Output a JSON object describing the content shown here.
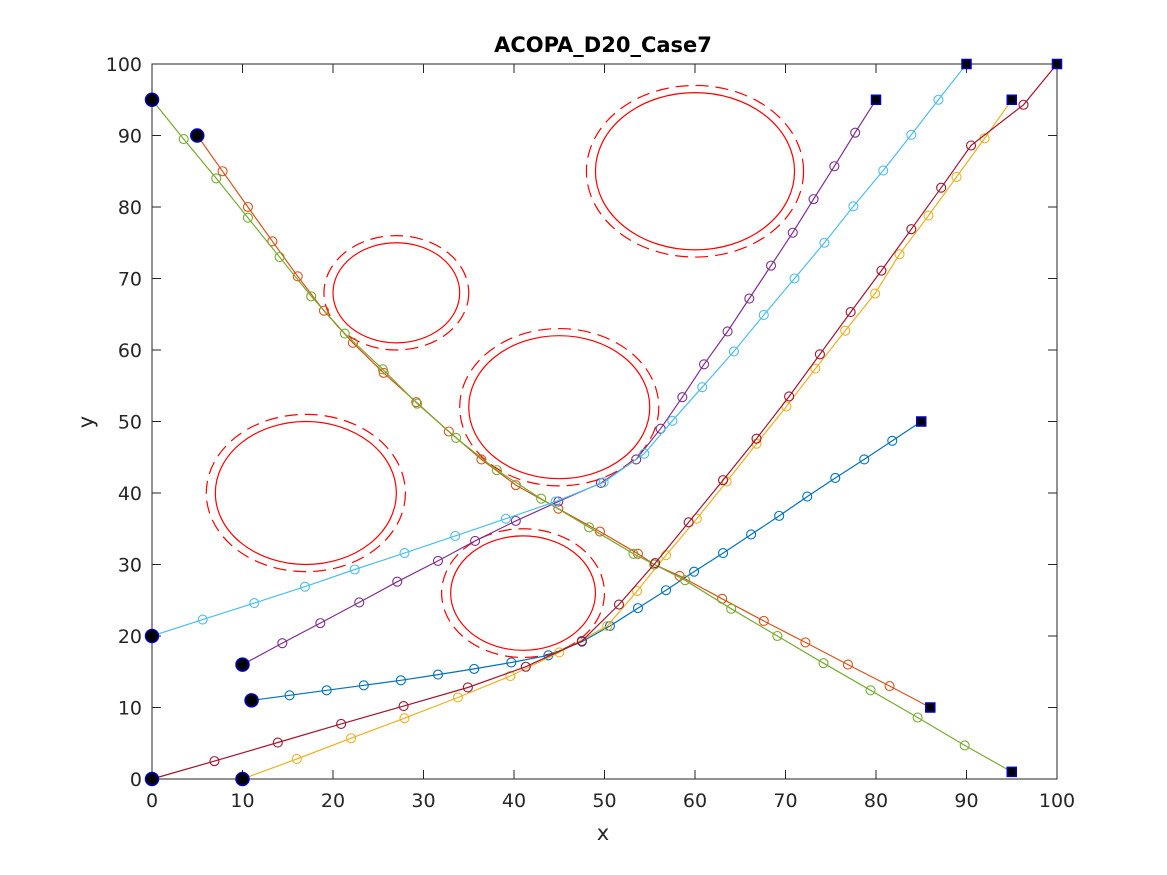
{
  "chart_data": {
    "type": "line",
    "title": "ACOPA_D20_Case7",
    "xlabel": "x",
    "ylabel": "y",
    "xlim": [
      0,
      100
    ],
    "ylim": [
      0,
      100
    ],
    "xticks": [
      "0",
      "10",
      "20",
      "30",
      "40",
      "50",
      "60",
      "70",
      "80",
      "90",
      "100"
    ],
    "yticks": [
      "0",
      "10",
      "20",
      "30",
      "40",
      "50",
      "60",
      "70",
      "80",
      "90",
      "100"
    ],
    "grid": false,
    "obstacles": [
      {
        "cx": 17,
        "cy": 40,
        "rx": 10,
        "ry": 10,
        "margin": 1
      },
      {
        "cx": 27,
        "cy": 68,
        "rx": 7,
        "ry": 7,
        "margin": 1
      },
      {
        "cx": 45,
        "cy": 52,
        "rx": 10,
        "ry": 10,
        "margin": 1
      },
      {
        "cx": 41,
        "cy": 26,
        "rx": 8,
        "ry": 8,
        "margin": 1
      },
      {
        "cx": 60,
        "cy": 85,
        "rx": 11,
        "ry": 11,
        "margin": 1
      }
    ],
    "series": [
      {
        "color": "#0072BD",
        "start": [
          11,
          11
        ],
        "goal": [
          85,
          50
        ],
        "points": [
          [
            11,
            11
          ],
          [
            15.2,
            11.7
          ],
          [
            19.3,
            12.4
          ],
          [
            23.4,
            13.1
          ],
          [
            27.5,
            13.8
          ],
          [
            31.6,
            14.6
          ],
          [
            35.6,
            15.4
          ],
          [
            39.7,
            16.3
          ],
          [
            43.8,
            17.3
          ],
          [
            47.5,
            19.2
          ],
          [
            50.6,
            21.4
          ],
          [
            53.7,
            23.9
          ],
          [
            56.8,
            26.4
          ],
          [
            59.9,
            29
          ],
          [
            63.1,
            31.6
          ],
          [
            66.2,
            34.2
          ],
          [
            69.3,
            36.8
          ],
          [
            72.4,
            39.5
          ],
          [
            75.5,
            42.1
          ],
          [
            78.7,
            44.7
          ],
          [
            81.8,
            47.3
          ],
          [
            85,
            50
          ]
        ]
      },
      {
        "color": "#D95319",
        "start": [
          5,
          90
        ],
        "goal": [
          86,
          10
        ],
        "points": [
          [
            5,
            90
          ],
          [
            7.8,
            85
          ],
          [
            10.6,
            80
          ],
          [
            13.3,
            75.2
          ],
          [
            16.1,
            70.3
          ],
          [
            19,
            65.5
          ],
          [
            22.2,
            61
          ],
          [
            25.6,
            56.8
          ],
          [
            29.2,
            52.7
          ],
          [
            32.8,
            48.6
          ],
          [
            36.4,
            44.7
          ],
          [
            40.2,
            41.1
          ],
          [
            44.9,
            37.8
          ],
          [
            49.5,
            34.6
          ],
          [
            53.7,
            31.5
          ],
          [
            55.5,
            30
          ],
          [
            58.3,
            28.4
          ],
          [
            63,
            25.2
          ],
          [
            67.6,
            22.1
          ],
          [
            72.2,
            19.1
          ],
          [
            76.9,
            16
          ],
          [
            81.5,
            13
          ],
          [
            86,
            10
          ]
        ]
      },
      {
        "color": "#EDB120",
        "start": [
          10,
          0
        ],
        "goal": [
          95,
          95
        ],
        "points": [
          [
            10,
            0
          ],
          [
            16,
            2.8
          ],
          [
            22,
            5.7
          ],
          [
            27.9,
            8.5
          ],
          [
            33.8,
            11.4
          ],
          [
            39.6,
            14.4
          ],
          [
            45,
            17.7
          ],
          [
            50.3,
            21.4
          ],
          [
            53.6,
            26.3
          ],
          [
            56.8,
            31.3
          ],
          [
            60.2,
            36.4
          ],
          [
            63.5,
            41.6
          ],
          [
            66.8,
            46.9
          ],
          [
            70.1,
            52.1
          ],
          [
            73.3,
            57.4
          ],
          [
            76.6,
            62.7
          ],
          [
            79.9,
            67.9
          ],
          [
            82.6,
            73.4
          ],
          [
            85.8,
            78.8
          ],
          [
            88.9,
            84.2
          ],
          [
            92,
            89.6
          ],
          [
            95,
            95
          ]
        ]
      },
      {
        "color": "#7E2F8E",
        "start": [
          10,
          16
        ],
        "goal": [
          80,
          95
        ],
        "points": [
          [
            10,
            16
          ],
          [
            14.4,
            19
          ],
          [
            18.6,
            21.8
          ],
          [
            22.9,
            24.7
          ],
          [
            27.1,
            27.6
          ],
          [
            31.6,
            30.5
          ],
          [
            35.7,
            33.3
          ],
          [
            40.2,
            36.1
          ],
          [
            44.9,
            38.8
          ],
          [
            49.6,
            41.4
          ],
          [
            53.5,
            44.7
          ],
          [
            56.2,
            49
          ],
          [
            58.6,
            53.4
          ],
          [
            61,
            58
          ],
          [
            63.6,
            62.6
          ],
          [
            66,
            67.2
          ],
          [
            68.4,
            71.8
          ],
          [
            70.8,
            76.4
          ],
          [
            73.1,
            81.1
          ],
          [
            75.4,
            85.7
          ],
          [
            77.7,
            90.4
          ],
          [
            80,
            95
          ]
        ]
      },
      {
        "color": "#77AC30",
        "start": [
          0,
          95
        ],
        "goal": [
          95,
          1
        ],
        "points": [
          [
            0,
            95
          ],
          [
            3.5,
            89.5
          ],
          [
            7.1,
            84
          ],
          [
            10.6,
            78.5
          ],
          [
            14.1,
            73
          ],
          [
            17.6,
            67.5
          ],
          [
            21.3,
            62.3
          ],
          [
            25.5,
            57.3
          ],
          [
            29.3,
            52.5
          ],
          [
            33.6,
            47.7
          ],
          [
            38.1,
            43.2
          ],
          [
            43,
            39.2
          ],
          [
            48.3,
            35.2
          ],
          [
            53.2,
            31.5
          ],
          [
            55.5,
            30
          ],
          [
            58.9,
            27.8
          ],
          [
            64,
            23.8
          ],
          [
            69.1,
            20
          ],
          [
            74.2,
            16.2
          ],
          [
            79.4,
            12.4
          ],
          [
            84.6,
            8.6
          ],
          [
            89.8,
            4.7
          ],
          [
            95,
            1
          ]
        ]
      },
      {
        "color": "#4DBEEE",
        "start": [
          0,
          20
        ],
        "goal": [
          90,
          100
        ],
        "points": [
          [
            0,
            20
          ],
          [
            5.6,
            22.3
          ],
          [
            11.3,
            24.6
          ],
          [
            16.9,
            26.9
          ],
          [
            22.4,
            29.3
          ],
          [
            27.9,
            31.6
          ],
          [
            33.5,
            34
          ],
          [
            39.1,
            36.4
          ],
          [
            44.6,
            38.8
          ],
          [
            49.9,
            41.5
          ],
          [
            54.4,
            45.5
          ],
          [
            57.5,
            50.1
          ],
          [
            60.8,
            54.8
          ],
          [
            64.3,
            59.8
          ],
          [
            67.6,
            64.9
          ],
          [
            71,
            70
          ],
          [
            74.3,
            75
          ],
          [
            77.5,
            80.1
          ],
          [
            80.8,
            85.1
          ],
          [
            83.9,
            90.1
          ],
          [
            86.9,
            95
          ],
          [
            90,
            100
          ]
        ]
      },
      {
        "color": "#A2142F",
        "start": [
          0,
          0
        ],
        "goal": [
          100,
          100
        ],
        "points": [
          [
            0,
            0
          ],
          [
            6.9,
            2.5
          ],
          [
            13.9,
            5.1
          ],
          [
            20.9,
            7.7
          ],
          [
            27.8,
            10.2
          ],
          [
            34.9,
            12.8
          ],
          [
            41.3,
            15.7
          ],
          [
            47.5,
            19.3
          ],
          [
            51.6,
            24.4
          ],
          [
            55.6,
            30.2
          ],
          [
            59.3,
            35.9
          ],
          [
            63.1,
            41.8
          ],
          [
            66.8,
            47.6
          ],
          [
            70.4,
            53.5
          ],
          [
            73.8,
            59.4
          ],
          [
            77.2,
            65.3
          ],
          [
            80.6,
            71.1
          ],
          [
            83.9,
            76.9
          ],
          [
            87.2,
            82.7
          ],
          [
            90.5,
            88.6
          ],
          [
            96.3,
            94.3
          ],
          [
            100,
            100
          ]
        ]
      }
    ]
  }
}
